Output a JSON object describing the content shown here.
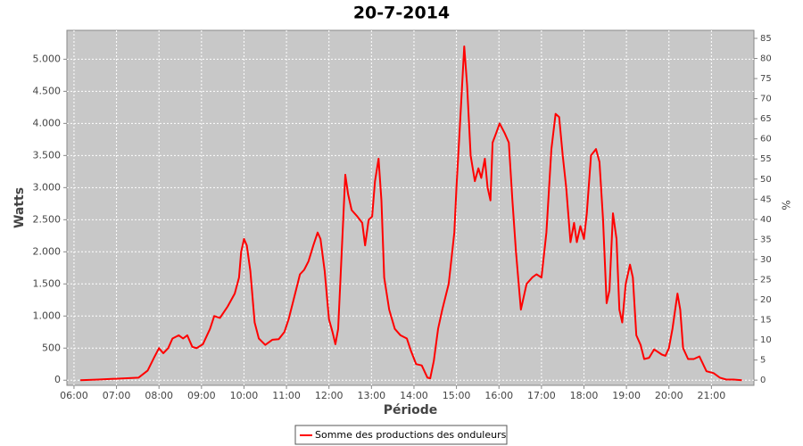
{
  "chart_data": {
    "type": "line",
    "title": "20-7-2014",
    "x_label": "Période",
    "y_label": "Watts",
    "y2_label": "%",
    "grid": true,
    "legend": "bottom",
    "background": "#c8c8c8",
    "xlim": [
      "05:50",
      "22:00"
    ],
    "xticks": [
      "06:00",
      "07:00",
      "08:00",
      "09:00",
      "10:00",
      "11:00",
      "12:00",
      "13:00",
      "14:00",
      "15:00",
      "16:00",
      "17:00",
      "18:00",
      "19:00",
      "20:00",
      "21:00"
    ],
    "ylim": [
      -80,
      5450
    ],
    "yticks": [
      0,
      500,
      {
        "value": 1000,
        "label": "1.000"
      },
      {
        "value": 1500,
        "label": "1.500"
      },
      {
        "value": 2000,
        "label": "2.000"
      },
      {
        "value": 2500,
        "label": "2.500"
      },
      {
        "value": 3000,
        "label": "3.000"
      },
      {
        "value": 3500,
        "label": "3.500"
      },
      {
        "value": 4000,
        "label": "4.000"
      },
      {
        "value": 4500,
        "label": "4.500"
      },
      {
        "value": 5000,
        "label": "5.000"
      }
    ],
    "y2lim": [
      -1.3,
      87
    ],
    "y2ticks": [
      0,
      5,
      10,
      15,
      20,
      25,
      30,
      35,
      40,
      45,
      50,
      55,
      60,
      65,
      70,
      75,
      80,
      85
    ],
    "x": [
      "06:09",
      "06:34",
      "07:12",
      "07:31",
      "07:44",
      "07:53",
      "08:00",
      "08:06",
      "08:13",
      "08:19",
      "08:28",
      "08:34",
      "08:40",
      "08:47",
      "08:53",
      "09:02",
      "09:12",
      "09:18",
      "09:26",
      "09:37",
      "09:47",
      "09:53",
      "09:56",
      "10:00",
      "10:04",
      "10:09",
      "10:15",
      "10:21",
      "10:30",
      "10:40",
      "10:49",
      "10:57",
      "11:03",
      "11:10",
      "11:19",
      "11:25",
      "11:31",
      "11:38",
      "11:44",
      "11:48",
      "11:54",
      "12:00",
      "12:05",
      "12:09",
      "12:13",
      "12:18",
      "12:23",
      "12:27",
      "12:32",
      "12:40",
      "12:47",
      "12:51",
      "12:56",
      "13:01",
      "13:05",
      "13:10",
      "13:14",
      "13:18",
      "13:25",
      "13:33",
      "13:41",
      "13:50",
      "13:56",
      "14:03",
      "14:11",
      "14:19",
      "14:23",
      "14:28",
      "14:34",
      "14:40",
      "14:49",
      "14:57",
      "15:00",
      "15:06",
      "15:11",
      "15:15",
      "15:20",
      "15:26",
      "15:31",
      "15:35",
      "15:40",
      "15:44",
      "15:48",
      "15:51",
      "15:56",
      "16:01",
      "16:08",
      "16:14",
      "16:19",
      "16:24",
      "16:31",
      "16:39",
      "16:47",
      "16:53",
      "17:00",
      "17:07",
      "17:14",
      "17:20",
      "17:25",
      "17:30",
      "17:35",
      "17:41",
      "17:46",
      "17:50",
      "17:55",
      "18:00",
      "18:04",
      "18:10",
      "18:17",
      "18:22",
      "18:27",
      "18:32",
      "18:36",
      "18:41",
      "18:46",
      "18:50",
      "18:54",
      "18:59",
      "19:05",
      "19:09",
      "19:14",
      "19:20",
      "19:25",
      "19:32",
      "19:39",
      "19:50",
      "19:55",
      "20:00",
      "20:05",
      "20:12",
      "20:16",
      "20:20",
      "20:27",
      "20:35",
      "20:43",
      "20:53",
      "21:03",
      "21:12",
      "21:21",
      "21:31",
      "21:43"
    ],
    "series": [
      {
        "name": "Somme des productions des onduleurs",
        "color": "#ff0000",
        "values": [
          0,
          10,
          30,
          40,
          150,
          350,
          500,
          420,
          500,
          650,
          700,
          650,
          700,
          520,
          500,
          560,
          800,
          1000,
          970,
          1150,
          1350,
          1600,
          2000,
          2200,
          2100,
          1700,
          900,
          650,
          550,
          630,
          640,
          750,
          950,
          1250,
          1650,
          1720,
          1850,
          2100,
          2300,
          2200,
          1700,
          950,
          750,
          560,
          800,
          2000,
          3200,
          2900,
          2650,
          2550,
          2450,
          2100,
          2500,
          2550,
          3100,
          3450,
          2800,
          1600,
          1100,
          800,
          700,
          650,
          450,
          250,
          230,
          40,
          30,
          300,
          800,
          1100,
          1500,
          2300,
          3000,
          4200,
          5200,
          4600,
          3500,
          3100,
          3300,
          3150,
          3450,
          3000,
          2800,
          3700,
          3850,
          4000,
          3850,
          3700,
          2800,
          2000,
          1100,
          1500,
          1600,
          1650,
          1600,
          2300,
          3600,
          4150,
          4100,
          3500,
          3000,
          2150,
          2450,
          2150,
          2400,
          2200,
          2600,
          3500,
          3600,
          3400,
          2500,
          1200,
          1400,
          2600,
          2200,
          1100,
          900,
          1500,
          1800,
          1600,
          700,
          550,
          330,
          350,
          480,
          400,
          380,
          500,
          800,
          1350,
          1100,
          500,
          330,
          330,
          370,
          140,
          110,
          40,
          10,
          10,
          0
        ]
      }
    ]
  }
}
